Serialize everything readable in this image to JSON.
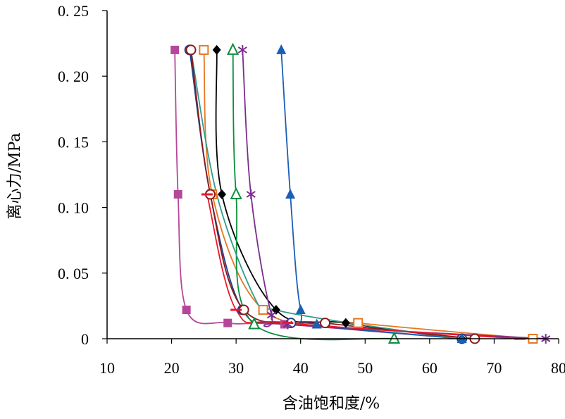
{
  "chart_data": {
    "type": "scatter",
    "title": "",
    "xlabel": "含油饱和度/%",
    "ylabel": "离心力/MPa",
    "xlim": [
      10,
      80
    ],
    "ylim": [
      0,
      0.25
    ],
    "xticks": [
      10,
      20,
      30,
      40,
      50,
      60,
      70,
      80
    ],
    "yticks": [
      0,
      0.05,
      0.1,
      0.15,
      0.2,
      0.25
    ],
    "xtick_labels": [
      "10",
      "20",
      "30",
      "40",
      "50",
      "60",
      "70",
      "80"
    ],
    "ytick_labels": [
      "0",
      "0. 05",
      "0. 10",
      "0. 15",
      "0. 20",
      "0. 25"
    ],
    "grid": false,
    "legend": "none",
    "series": [
      {
        "color": "#b5479b",
        "marker": "square-filled",
        "points": [
          [
            20.5,
            0.22
          ],
          [
            21.0,
            0.11
          ],
          [
            22.3,
            0.022
          ],
          [
            28.7,
            0.012
          ],
          [
            37.5,
            0.011
          ],
          [
            65.0,
            0.0
          ]
        ]
      },
      {
        "color": "#1f3f8a",
        "marker": "circle-open",
        "points": [
          [
            22.8,
            0.22
          ],
          [
            26.0,
            0.11
          ],
          [
            31.0,
            0.022
          ],
          [
            38.5,
            0.012
          ],
          [
            65.0,
            0.0
          ]
        ]
      },
      {
        "color": "#e87722",
        "marker": "square-open",
        "points": [
          [
            25.0,
            0.22
          ],
          [
            26.3,
            0.11
          ],
          [
            34.2,
            0.022
          ],
          [
            48.9,
            0.012
          ],
          [
            76.0,
            0.0
          ]
        ]
      },
      {
        "color": "#000000",
        "marker": "diamond-filled",
        "points": [
          [
            27.0,
            0.22
          ],
          [
            27.8,
            0.11
          ],
          [
            36.2,
            0.022
          ],
          [
            47.0,
            0.012
          ],
          [
            65.0,
            0.0
          ]
        ]
      },
      {
        "color": "#0a8f3c",
        "marker": "triangle-open",
        "points": [
          [
            29.5,
            0.22
          ],
          [
            30.0,
            0.11
          ],
          [
            32.8,
            0.011
          ],
          [
            54.5,
            0.0
          ]
        ]
      },
      {
        "color": "#7b2d8e",
        "marker": "asterisk",
        "points": [
          [
            31.0,
            0.22
          ],
          [
            32.3,
            0.11
          ],
          [
            35.5,
            0.018
          ],
          [
            38.0,
            0.011
          ],
          [
            78.0,
            0.0
          ]
        ]
      },
      {
        "color": "#1a5fb4",
        "marker": "triangle-filled",
        "points": [
          [
            37.0,
            0.22
          ],
          [
            38.4,
            0.11
          ],
          [
            40.0,
            0.022
          ],
          [
            42.5,
            0.011
          ],
          [
            65.0,
            0.0
          ]
        ]
      },
      {
        "color": "#2f9c8c",
        "marker": "none",
        "points": [
          [
            23.0,
            0.22
          ],
          [
            27.0,
            0.11
          ],
          [
            33.0,
            0.03
          ],
          [
            36.0,
            0.022
          ],
          [
            47.5,
            0.012
          ],
          [
            65.0,
            0.0
          ]
        ]
      },
      {
        "color": "#8b1a1a",
        "marker": "circle-open",
        "points": [
          [
            23.0,
            0.22
          ],
          [
            26.0,
            0.11
          ],
          [
            31.2,
            0.022
          ],
          [
            43.8,
            0.012
          ],
          [
            67.0,
            0.0
          ]
        ]
      },
      {
        "color": "#e8192c",
        "marker": "dash",
        "points": [
          [
            25.5,
            0.11
          ],
          [
            30.0,
            0.022
          ],
          [
            38.0,
            0.012
          ],
          [
            74.0,
            0.0
          ]
        ]
      }
    ]
  }
}
